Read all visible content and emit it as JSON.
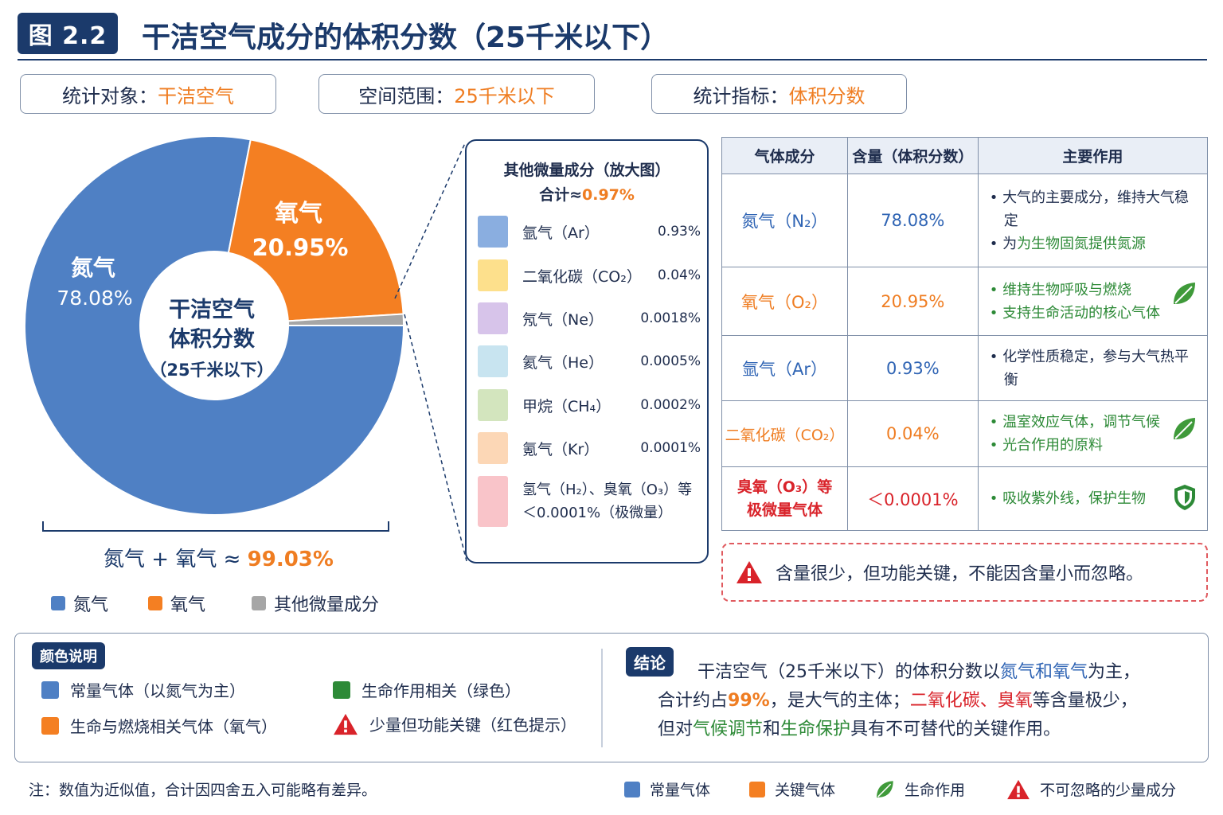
{
  "header": {
    "figure_label": "图 2.2",
    "title": "干洁空气成分的体积分数（25千米以下）"
  },
  "info": [
    {
      "key": "统计对象：",
      "value": "干洁空气"
    },
    {
      "key": "空间范围：",
      "value": "25千米以下"
    },
    {
      "key": "统计指标：",
      "value": "体积分数"
    }
  ],
  "chart_data": {
    "type": "pie",
    "title": "干洁空气",
    "subtitle": "体积分数",
    "center_note": "（25千米以下）",
    "slices": [
      {
        "label": "氮气",
        "value": 78.08,
        "value_label": "78.08%",
        "color": "#4f80c4"
      },
      {
        "label": "氧气",
        "value": 20.95,
        "value_label": "20.95%",
        "color": "#f47f22"
      },
      {
        "label": "其他微量成分",
        "value": 0.97,
        "value_label": "",
        "color": "#a6a6a6"
      }
    ],
    "legend": [
      "氮气",
      "氧气",
      "其他微量成分"
    ],
    "sum_note_label": "氮气 + 氧气 ≈",
    "sum_note_value": "99.03%"
  },
  "zoom": {
    "title": "其他微量成分（放大图）",
    "total_label": "合计≈",
    "total_value": "0.97%",
    "items": [
      {
        "name": "氩气（Ar）",
        "value": "0.93%",
        "color": "#8aaee0"
      },
      {
        "name": "二氧化碳（CO₂）",
        "value": "0.04%",
        "color": "#fde08c"
      },
      {
        "name": "氖气（Ne）",
        "value": "0.0018%",
        "color": "#d7c4ea"
      },
      {
        "name": "氦气（He）",
        "value": "0.0005%",
        "color": "#c8e4f0"
      },
      {
        "name": "甲烷（CH₄）",
        "value": "0.0002%",
        "color": "#d3e5be"
      },
      {
        "name": "氪气（Kr）",
        "value": "0.0001%",
        "color": "#fcd7b6"
      }
    ],
    "last_item_line1": "氢气（H₂）、臭氧（O₃）等",
    "last_item_line2": "＜0.0001%（极微量）",
    "last_item_color": "#f9c4c9"
  },
  "table": {
    "headers": [
      "气体成分",
      "含量（体积分数）",
      "主要作用"
    ],
    "rows": [
      {
        "gas": "氮气（N₂）",
        "amount": "78.08%",
        "note1": "大气的主要成分，维持大气稳定",
        "note2": "为生物固氮提供氮源"
      },
      {
        "gas": "氧气（O₂）",
        "amount": "20.95%",
        "note1": "维持生物呼吸与燃烧",
        "note2": "支持生命活动的核心气体"
      },
      {
        "gas": "氩气（Ar）",
        "amount": "0.93%",
        "note1": "化学性质稳定，参与大气热平衡"
      },
      {
        "gas": "二氧化碳（CO₂）",
        "amount": "0.04%",
        "note1": "温室效应气体，调节气候",
        "note2": "光合作用的原料"
      },
      {
        "gas_line1": "臭氧（O₃）等",
        "gas_line2": "极微量气体",
        "amount": "＜0.0001%",
        "note1": "吸收紫外线，保护生物"
      }
    ]
  },
  "warning": "含量很少，但功能关键，不能因含量小而忽略。",
  "color_legend": {
    "tag": "颜色说明",
    "items": [
      "常量气体（以氮气为主）",
      "生命作用相关（绿色）",
      "生命与燃烧相关气体（氧气）",
      "少量但功能关键（红色提示）"
    ]
  },
  "conclusion": {
    "tag": "结论",
    "t1": "干洁空气（25千米以下）的体积分数以",
    "t2": "氮气和氧气",
    "t3": "为主，",
    "t4": "合计约占",
    "t5": "99%",
    "t6": "，是大气的主体；",
    "t7": "二氧化碳、臭氧",
    "t8": "等含量极少，",
    "t9": "但对",
    "t10": "气候调节",
    "t11": "和",
    "t12": "生命保护",
    "t13": "具有不可替代的关键作用。"
  },
  "footnote": "注：数值为近似值，合计因四舍五入可能略有差异。",
  "footer_legend": [
    "常量气体",
    "关键气体",
    "生命作用",
    "不可忽略的少量成分"
  ],
  "colors": {
    "navy": "#1b3a6b",
    "blue": "#4f80c4",
    "orange": "#f47f22",
    "gray": "#a6a6a6",
    "green": "#2d8a37",
    "red": "#d9232a"
  },
  "icons": [
    "leaf-icon",
    "shield-icon",
    "warning-icon"
  ]
}
